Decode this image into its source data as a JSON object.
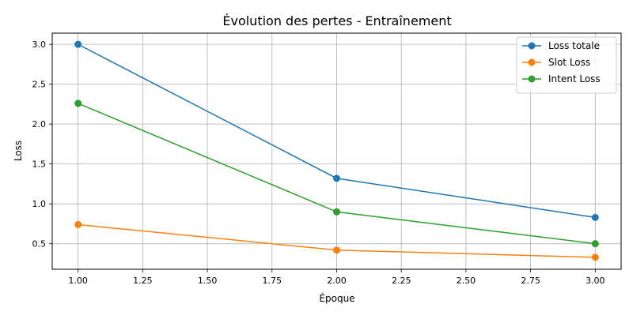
{
  "chart_data": {
    "type": "line",
    "title": "Évolution des pertes - Entraînement",
    "xlabel": "Époque",
    "ylabel": "Loss",
    "x": [
      1.0,
      2.0,
      3.0
    ],
    "xlim": [
      0.9,
      3.1
    ],
    "ylim": [
      0.18,
      3.14
    ],
    "xticks": [
      1.0,
      1.25,
      1.5,
      1.75,
      2.0,
      2.25,
      2.5,
      2.75,
      3.0
    ],
    "xtick_labels": [
      "1.00",
      "1.25",
      "1.50",
      "1.75",
      "2.00",
      "2.25",
      "2.50",
      "2.75",
      "3.00"
    ],
    "yticks": [
      0.5,
      1.0,
      1.5,
      2.0,
      2.5,
      3.0
    ],
    "ytick_labels": [
      "0.5",
      "1.0",
      "1.5",
      "2.0",
      "2.5",
      "3.0"
    ],
    "grid": true,
    "legend_position": "top-right",
    "series": [
      {
        "name": "Loss totale",
        "values": [
          3.0,
          1.32,
          0.83
        ],
        "color": "#1f77b4"
      },
      {
        "name": "Slot Loss",
        "values": [
          0.74,
          0.42,
          0.33
        ],
        "color": "#ff7f0e"
      },
      {
        "name": "Intent Loss",
        "values": [
          2.26,
          0.9,
          0.5
        ],
        "color": "#2ca02c"
      }
    ]
  }
}
